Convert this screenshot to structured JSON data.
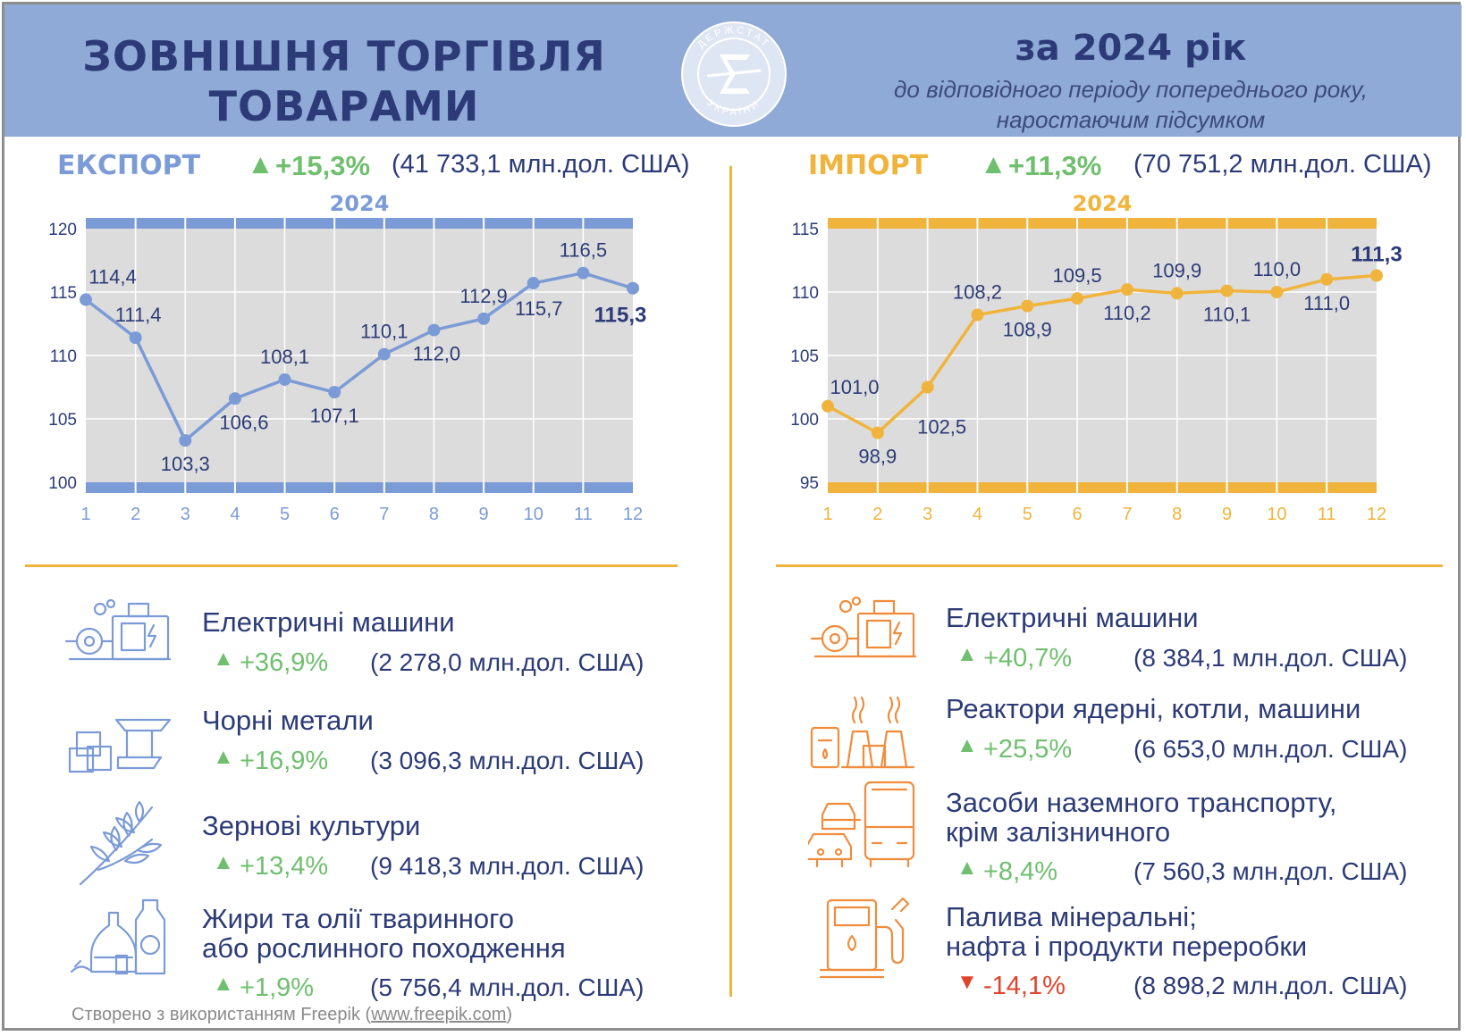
{
  "header": {
    "title_line1": "ЗОВНІШНЯ ТОРГІВЛЯ",
    "title_line2": "ТОВАРАМИ",
    "logo_top": "ДЕРЖСТАТ",
    "logo_bottom": "УКРАЇНИ",
    "period": "за 2024 рік",
    "period_sub1": "до відповідного періоду попереднього року,",
    "period_sub2": "наростаючим підсумком"
  },
  "export": {
    "name": "ЕКСПОРТ",
    "arrow": "▲",
    "pct": "+15,3%",
    "total": "(41 733,1 млн.дол. США)",
    "color": "#7b9bd6",
    "dark": "#2c3b78",
    "items": [
      {
        "name1": "Електричні машини",
        "name2": "",
        "arrow": "▲",
        "pct": "+36,9%",
        "value": "(2 278,0 млн.дол. США)",
        "icon": "electric-machine-icon"
      },
      {
        "name1": "Чорні метали",
        "name2": "",
        "arrow": "▲",
        "pct": "+16,9%",
        "value": "(3 096,3 млн.дол. США)",
        "icon": "steel-beams-icon"
      },
      {
        "name1": "Зернові культури",
        "name2": "",
        "arrow": "▲",
        "pct": "+13,4%",
        "value": "(9 418,3 млн.дол. США)",
        "icon": "wheat-icon"
      },
      {
        "name1": "Жири та олії тваринного",
        "name2": "або рослинного походження",
        "arrow": "▲",
        "pct": "+1,9%",
        "value": "(5 756,4 млн.дол. США)",
        "icon": "oil-bottles-icon"
      }
    ]
  },
  "import": {
    "name": "ІМПОРТ",
    "arrow": "▲",
    "pct": "+11,3%",
    "total": "(70 751,2 млн.дол. США)",
    "color": "#f0b43c",
    "icon_color": "#f08c3c",
    "dark": "#2c3b78",
    "items": [
      {
        "name1": "Електричні машини",
        "name2": "",
        "arrow": "▲",
        "pct": "+40,7%",
        "value": "(8 384,1 млн.дол. США)",
        "dir": "up",
        "icon": "electric-machine-icon"
      },
      {
        "name1": "Реактори ядерні, котли, машини",
        "name2": "",
        "arrow": "▲",
        "pct": "+25,5%",
        "value": "(6 653,0 млн.дол. США)",
        "dir": "up",
        "icon": "reactor-icon"
      },
      {
        "name1": "Засоби наземного транспорту,",
        "name2": "крім залізничного",
        "arrow": "▲",
        "pct": "+8,4%",
        "value": "(7 560,3 млн.дол. США)",
        "dir": "up",
        "icon": "transport-icon"
      },
      {
        "name1": "Палива мінеральні;",
        "name2": "нафта і продукти переробки",
        "arrow": "▼",
        "pct": "-14,1%",
        "value": "(8 898,2 млн.дол. США)",
        "dir": "down",
        "icon": "fuel-pump-icon"
      }
    ]
  },
  "chart_data": [
    {
      "type": "line",
      "title": "2024",
      "categories": [
        "1",
        "2",
        "3",
        "4",
        "5",
        "6",
        "7",
        "8",
        "9",
        "10",
        "11",
        "12"
      ],
      "values": [
        114.4,
        111.4,
        103.3,
        106.6,
        108.1,
        107.1,
        110.1,
        112.0,
        112.9,
        115.7,
        116.5,
        115.3
      ],
      "labels": [
        "114,4",
        "111,4",
        "103,3",
        "106,6",
        "108,1",
        "107,1",
        "110,1",
        "112,0",
        "112,9",
        "115,7",
        "116,5",
        "115,3"
      ],
      "yticks": [
        "100",
        "105",
        "110",
        "115",
        "120"
      ],
      "ylim": [
        100,
        120
      ],
      "grid": true,
      "color": "#7b9bd6"
    },
    {
      "type": "line",
      "title": "2024",
      "categories": [
        "1",
        "2",
        "3",
        "4",
        "5",
        "6",
        "7",
        "8",
        "9",
        "10",
        "11",
        "12"
      ],
      "values": [
        101.0,
        98.9,
        102.5,
        108.2,
        108.9,
        109.5,
        110.2,
        109.9,
        110.1,
        110.0,
        111.0,
        111.3
      ],
      "labels": [
        "101,0",
        "98,9",
        "102,5",
        "108,2",
        "108,9",
        "109,5",
        "110,2",
        "109,9",
        "110,1",
        "110,0",
        "111,0",
        "111,3"
      ],
      "yticks": [
        "95",
        "100",
        "105",
        "110",
        "115"
      ],
      "ylim": [
        95,
        115
      ],
      "grid": true,
      "color": "#f0b43c"
    }
  ],
  "footer": {
    "text": "Створено з використанням Freepik (",
    "link": "www.freepik.com",
    "close": ")"
  }
}
